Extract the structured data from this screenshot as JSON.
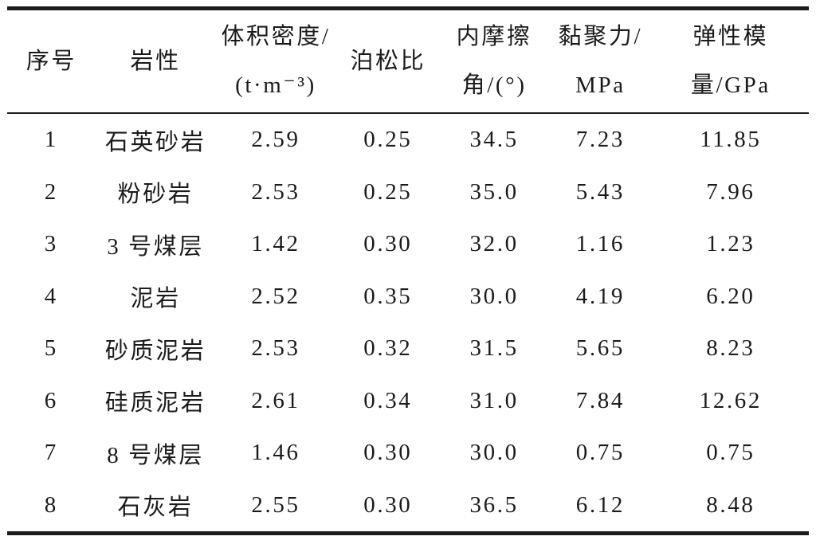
{
  "table": {
    "columns": [
      {
        "id": "seq",
        "label_lines": [
          "序号"
        ]
      },
      {
        "id": "lithology",
        "label_lines": [
          "岩性"
        ]
      },
      {
        "id": "bulk-density",
        "label_lines": [
          "体积密度/",
          "(t·m⁻³)"
        ]
      },
      {
        "id": "poisson",
        "label_lines": [
          "泊松比"
        ]
      },
      {
        "id": "friction-angle",
        "label_lines": [
          "内摩擦",
          "角/(°)"
        ]
      },
      {
        "id": "cohesion",
        "label_lines": [
          "黏聚力/",
          "MPa"
        ]
      },
      {
        "id": "elastic-mod",
        "label_lines": [
          "弹性模",
          "量/GPa"
        ]
      }
    ],
    "rows": [
      [
        "1",
        "石英砂岩",
        "2.59",
        "0.25",
        "34.5",
        "7.23",
        "11.85"
      ],
      [
        "2",
        "粉砂岩",
        "2.53",
        "0.25",
        "35.0",
        "5.43",
        "7.96"
      ],
      [
        "3",
        "3 号煤层",
        "1.42",
        "0.30",
        "32.0",
        "1.16",
        "1.23"
      ],
      [
        "4",
        "泥岩",
        "2.52",
        "0.35",
        "30.0",
        "4.19",
        "6.20"
      ],
      [
        "5",
        "砂质泥岩",
        "2.53",
        "0.32",
        "31.5",
        "5.65",
        "8.23"
      ],
      [
        "6",
        "硅质泥岩",
        "2.61",
        "0.34",
        "31.0",
        "7.84",
        "12.62"
      ],
      [
        "7",
        "8 号煤层",
        "1.46",
        "0.30",
        "30.0",
        "0.75",
        "0.75"
      ],
      [
        "8",
        "石灰岩",
        "2.55",
        "0.30",
        "36.5",
        "6.12",
        "8.48"
      ]
    ]
  },
  "colors": {
    "text": "#1b1b1b",
    "rule": "#1c1c1c",
    "background": "#ffffff"
  }
}
